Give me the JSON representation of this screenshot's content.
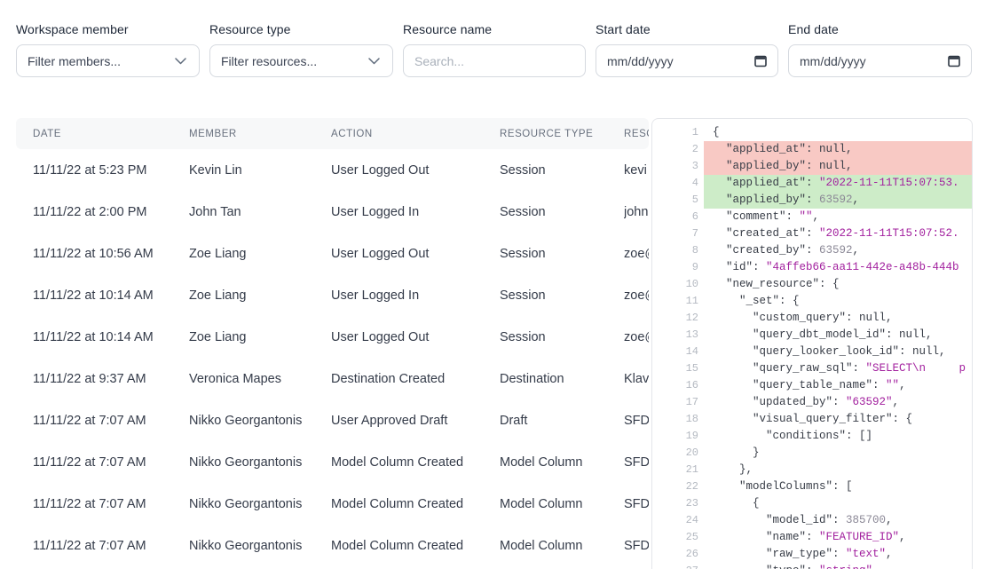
{
  "filters": {
    "member": {
      "label": "Workspace member",
      "value": "Filter members..."
    },
    "type": {
      "label": "Resource type",
      "value": "Filter resources..."
    },
    "name": {
      "label": "Resource name",
      "placeholder": "Search..."
    },
    "start": {
      "label": "Start date",
      "placeholder": "mm/dd/yyyy"
    },
    "end": {
      "label": "End date",
      "placeholder": "mm/dd/yyyy"
    }
  },
  "table": {
    "columns": [
      "Date",
      "Member",
      "Action",
      "Resource type",
      "Resource name"
    ],
    "rows": [
      {
        "date": "11/11/22 at 5:23 PM",
        "member": "Kevin Lin",
        "action": "User Logged Out",
        "resource_type": "Session",
        "resource_name": "kevi"
      },
      {
        "date": "11/11/22 at 2:00 PM",
        "member": "John Tan",
        "action": "User Logged In",
        "resource_type": "Session",
        "resource_name": "john"
      },
      {
        "date": "11/11/22 at 10:56 AM",
        "member": "Zoe Liang",
        "action": "User Logged Out",
        "resource_type": "Session",
        "resource_name": "zoe@"
      },
      {
        "date": "11/11/22 at 10:14 AM",
        "member": "Zoe Liang",
        "action": "User Logged In",
        "resource_type": "Session",
        "resource_name": "zoe@"
      },
      {
        "date": "11/11/22 at 10:14 AM",
        "member": "Zoe Liang",
        "action": "User Logged Out",
        "resource_type": "Session",
        "resource_name": "zoe@"
      },
      {
        "date": "11/11/22 at 9:37 AM",
        "member": "Veronica Mapes",
        "action": "Destination Created",
        "resource_type": "Destination",
        "resource_name": "Klav"
      },
      {
        "date": "11/11/22 at 7:07 AM",
        "member": "Nikko Georgantonis",
        "action": "User Approved Draft",
        "resource_type": "Draft",
        "resource_name": "SFD"
      },
      {
        "date": "11/11/22 at 7:07 AM",
        "member": "Nikko Georgantonis",
        "action": "Model Column Created",
        "resource_type": "Model Column",
        "resource_name": "SFD"
      },
      {
        "date": "11/11/22 at 7:07 AM",
        "member": "Nikko Georgantonis",
        "action": "Model Column Created",
        "resource_type": "Model Column",
        "resource_name": "SFD"
      },
      {
        "date": "11/11/22 at 7:07 AM",
        "member": "Nikko Georgantonis",
        "action": "Model Column Created",
        "resource_type": "Model Column",
        "resource_name": "SFD"
      }
    ]
  },
  "code": {
    "lines": [
      {
        "n": 1,
        "bg": "",
        "tk": [
          [
            "p",
            "{"
          ]
        ]
      },
      {
        "n": 2,
        "bg": "del",
        "tk": [
          [
            "p",
            "  \"applied_at\": null,"
          ]
        ]
      },
      {
        "n": 3,
        "bg": "del",
        "tk": [
          [
            "p",
            "  \"applied_by\": null,"
          ]
        ]
      },
      {
        "n": 4,
        "bg": "add",
        "tk": [
          [
            "p",
            "  \"applied_at\": "
          ],
          [
            "s",
            "\"2022-11-11T15:07:53."
          ]
        ]
      },
      {
        "n": 5,
        "bg": "add",
        "tk": [
          [
            "p",
            "  \"applied_by\": "
          ],
          [
            "n",
            "63592"
          ],
          [
            "p",
            ","
          ]
        ]
      },
      {
        "n": 6,
        "bg": "",
        "tk": [
          [
            "p",
            "  \"comment\": "
          ],
          [
            "s",
            "\"\""
          ],
          [
            "p",
            ","
          ]
        ]
      },
      {
        "n": 7,
        "bg": "",
        "tk": [
          [
            "p",
            "  \"created_at\": "
          ],
          [
            "s",
            "\"2022-11-11T15:07:52."
          ]
        ]
      },
      {
        "n": 8,
        "bg": "",
        "tk": [
          [
            "p",
            "  \"created_by\": "
          ],
          [
            "n",
            "63592"
          ],
          [
            "p",
            ","
          ]
        ]
      },
      {
        "n": 9,
        "bg": "",
        "tk": [
          [
            "p",
            "  \"id\": "
          ],
          [
            "s",
            "\"4affeb66-aa11-442e-a48b-444b"
          ]
        ]
      },
      {
        "n": 10,
        "bg": "",
        "tk": [
          [
            "p",
            "  \"new_resource\": {"
          ]
        ]
      },
      {
        "n": 11,
        "bg": "",
        "tk": [
          [
            "p",
            "    \"_set\": {"
          ]
        ]
      },
      {
        "n": 12,
        "bg": "",
        "tk": [
          [
            "p",
            "      \"custom_query\": null,"
          ]
        ]
      },
      {
        "n": 13,
        "bg": "",
        "tk": [
          [
            "p",
            "      \"query_dbt_model_id\": null,"
          ]
        ]
      },
      {
        "n": 14,
        "bg": "",
        "tk": [
          [
            "p",
            "      \"query_looker_look_id\": null,"
          ]
        ]
      },
      {
        "n": 15,
        "bg": "",
        "tk": [
          [
            "p",
            "      \"query_raw_sql\": "
          ],
          [
            "s",
            "\"SELECT\\n     p"
          ]
        ]
      },
      {
        "n": 16,
        "bg": "",
        "tk": [
          [
            "p",
            "      \"query_table_name\": "
          ],
          [
            "s",
            "\"\""
          ],
          [
            "p",
            ","
          ]
        ]
      },
      {
        "n": 17,
        "bg": "",
        "tk": [
          [
            "p",
            "      \"updated_by\": "
          ],
          [
            "s",
            "\"63592\""
          ],
          [
            "p",
            ","
          ]
        ]
      },
      {
        "n": 18,
        "bg": "",
        "tk": [
          [
            "p",
            "      \"visual_query_filter\": {"
          ]
        ]
      },
      {
        "n": 19,
        "bg": "",
        "tk": [
          [
            "p",
            "        \"conditions\": []"
          ]
        ]
      },
      {
        "n": 20,
        "bg": "",
        "tk": [
          [
            "p",
            "      }"
          ]
        ]
      },
      {
        "n": 21,
        "bg": "",
        "tk": [
          [
            "p",
            "    },"
          ]
        ]
      },
      {
        "n": 22,
        "bg": "",
        "tk": [
          [
            "p",
            "    \"modelColumns\": ["
          ]
        ]
      },
      {
        "n": 23,
        "bg": "",
        "tk": [
          [
            "p",
            "      {"
          ]
        ]
      },
      {
        "n": 24,
        "bg": "",
        "tk": [
          [
            "p",
            "        \"model_id\": "
          ],
          [
            "n",
            "385700"
          ],
          [
            "p",
            ","
          ]
        ]
      },
      {
        "n": 25,
        "bg": "",
        "tk": [
          [
            "p",
            "        \"name\": "
          ],
          [
            "s",
            "\"FEATURE_ID\""
          ],
          [
            "p",
            ","
          ]
        ]
      },
      {
        "n": 26,
        "bg": "",
        "tk": [
          [
            "p",
            "        \"raw_type\": "
          ],
          [
            "s",
            "\"text\""
          ],
          [
            "p",
            ","
          ]
        ]
      },
      {
        "n": 27,
        "bg": "",
        "tk": [
          [
            "p",
            "        \"type\": "
          ],
          [
            "s",
            "\"string\""
          ],
          [
            "p",
            ","
          ]
        ]
      }
    ]
  },
  "colors": {
    "diff_removed_bg": "#f8c9c4",
    "diff_added_bg": "#cdecc8",
    "code_string": "#a2209e",
    "code_plain": "#383d47",
    "code_number": "#8b8896",
    "header_bg": "#f7f8f9"
  }
}
